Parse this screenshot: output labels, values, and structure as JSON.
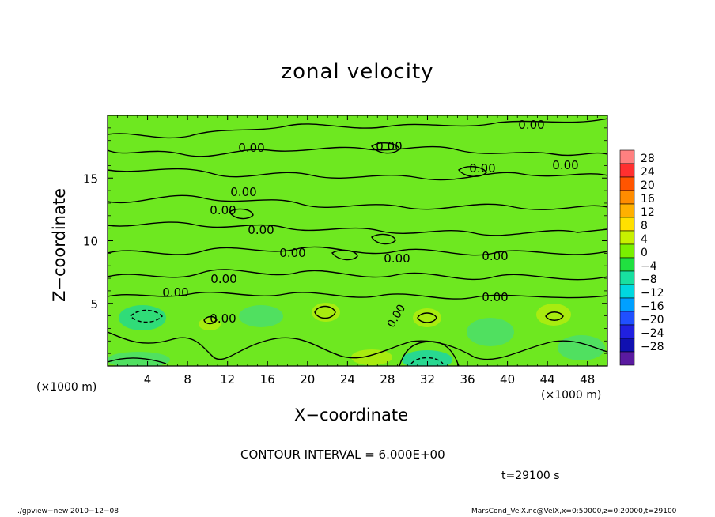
{
  "chart_data": {
    "type": "heatmap",
    "title": "zonal velocity",
    "xlabel": "X−coordinate",
    "ylabel": "Z−coordinate",
    "x_unit": "(×1000 m)",
    "y_unit": "(×1000 m)",
    "xlim": [
      0,
      50
    ],
    "ylim": [
      0,
      20
    ],
    "x_ticks": [
      "4",
      "8",
      "12",
      "16",
      "20",
      "24",
      "28",
      "32",
      "36",
      "40",
      "44",
      "48"
    ],
    "y_ticks": [
      "5",
      "10",
      "15"
    ],
    "colorbar_labels": [
      "28",
      "24",
      "20",
      "16",
      "12",
      "8",
      "4",
      "0",
      "−4",
      "−8",
      "−12",
      "−16",
      "−20",
      "−24",
      "−28"
    ],
    "colorbar_colors": [
      "#ff8080",
      "#ff3030",
      "#ff5500",
      "#ff8c00",
      "#ffb000",
      "#ffe000",
      "#c8f000",
      "#7af000",
      "#20e040",
      "#18e0a0",
      "#00d8e0",
      "#00a0ff",
      "#2050ff",
      "#2020e0",
      "#1010b0",
      "#5a1aa0"
    ],
    "contour_labels": [
      "0.00",
      "0.00",
      "0.00",
      "0.00",
      "0.00",
      "0.00",
      "0.00",
      "0.00",
      "0.00",
      "0.00",
      "0.00",
      "0.00",
      "0.00",
      "0.00",
      "0.00"
    ],
    "contour_interval": "CONTOUR INTERVAL = 6.000E+00",
    "time": "t=29100 s"
  },
  "footer": {
    "left": "./gpview−new  2010−12−08",
    "right": "MarsCond_VelX.nc@VelX,x=0:50000,z=0:20000,t=29100"
  }
}
